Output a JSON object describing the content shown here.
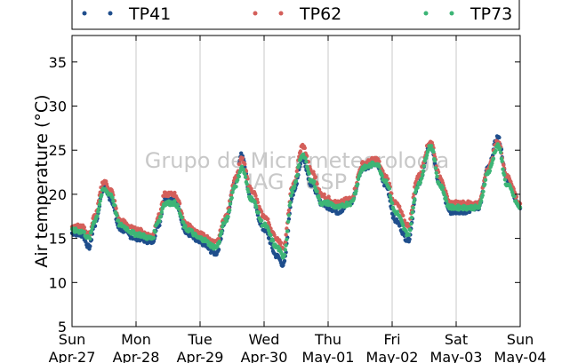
{
  "chart_data": {
    "type": "scatter",
    "ylabel": "Air temperature (°C)",
    "ylim": [
      5,
      38
    ],
    "yticks": [
      5,
      10,
      15,
      20,
      25,
      30,
      35
    ],
    "xlim_days": [
      0,
      7
    ],
    "xticks": [
      {
        "day": "Sun",
        "date": "Apr-27"
      },
      {
        "day": "Mon",
        "date": "Apr-28"
      },
      {
        "day": "Tue",
        "date": "Apr-29"
      },
      {
        "day": "Wed",
        "date": "Apr-30"
      },
      {
        "day": "Thu",
        "date": "May-01"
      },
      {
        "day": "Fri",
        "date": "May-02"
      },
      {
        "day": "Sat",
        "date": "May-03"
      },
      {
        "day": "Sun",
        "date": "May-04"
      }
    ],
    "grid": "vertical",
    "legend_position": "top",
    "watermark": [
      "Grupo de Micrometeorologia",
      "IAG / USP"
    ],
    "series": [
      {
        "name": "TP41",
        "color": "#1f4e8c",
        "points": [
          [
            0,
            15.6
          ],
          [
            0.15,
            15.4
          ],
          [
            0.27,
            14.0
          ],
          [
            0.35,
            16.5
          ],
          [
            0.5,
            20.8
          ],
          [
            0.6,
            19.5
          ],
          [
            0.75,
            16.0
          ],
          [
            1.0,
            15.0
          ],
          [
            1.25,
            14.6
          ],
          [
            1.35,
            16.5
          ],
          [
            1.45,
            19.5
          ],
          [
            1.6,
            19.5
          ],
          [
            1.8,
            15.5
          ],
          [
            2.0,
            14.5
          ],
          [
            2.25,
            13.3
          ],
          [
            2.4,
            17.0
          ],
          [
            2.55,
            21.5
          ],
          [
            2.65,
            24.5
          ],
          [
            2.8,
            19.5
          ],
          [
            3.0,
            16.0
          ],
          [
            3.2,
            13.0
          ],
          [
            3.3,
            12.0
          ],
          [
            3.45,
            20.0
          ],
          [
            3.6,
            24.0
          ],
          [
            3.75,
            21.0
          ],
          [
            3.9,
            19.0
          ],
          [
            4.0,
            18.5
          ],
          [
            4.15,
            18.0
          ],
          [
            4.35,
            19.0
          ],
          [
            4.55,
            23.0
          ],
          [
            4.75,
            23.5
          ],
          [
            4.9,
            21.0
          ],
          [
            5.05,
            17.0
          ],
          [
            5.25,
            14.8
          ],
          [
            5.4,
            21.0
          ],
          [
            5.6,
            25.5
          ],
          [
            5.75,
            21.0
          ],
          [
            5.9,
            18.0
          ],
          [
            6.1,
            18.0
          ],
          [
            6.35,
            18.5
          ],
          [
            6.5,
            23.0
          ],
          [
            6.65,
            26.5
          ],
          [
            6.8,
            21.5
          ],
          [
            7.0,
            18.5
          ]
        ]
      },
      {
        "name": "TP62",
        "color": "#d45f5a",
        "points": [
          [
            0,
            16.5
          ],
          [
            0.15,
            16.3
          ],
          [
            0.27,
            15.5
          ],
          [
            0.35,
            17.5
          ],
          [
            0.5,
            21.5
          ],
          [
            0.6,
            20.5
          ],
          [
            0.75,
            17.0
          ],
          [
            1.0,
            16.0
          ],
          [
            1.25,
            15.3
          ],
          [
            1.35,
            17.5
          ],
          [
            1.45,
            20.0
          ],
          [
            1.6,
            20.0
          ],
          [
            1.8,
            16.5
          ],
          [
            2.0,
            15.5
          ],
          [
            2.25,
            14.5
          ],
          [
            2.4,
            17.5
          ],
          [
            2.55,
            21.8
          ],
          [
            2.65,
            24.0
          ],
          [
            2.8,
            20.5
          ],
          [
            3.0,
            17.5
          ],
          [
            3.2,
            15.0
          ],
          [
            3.3,
            14.0
          ],
          [
            3.45,
            21.0
          ],
          [
            3.6,
            25.5
          ],
          [
            3.75,
            22.5
          ],
          [
            3.9,
            20.0
          ],
          [
            4.0,
            19.5
          ],
          [
            4.15,
            19.0
          ],
          [
            4.35,
            19.5
          ],
          [
            4.55,
            23.5
          ],
          [
            4.75,
            24.0
          ],
          [
            4.9,
            22.0
          ],
          [
            5.05,
            19.0
          ],
          [
            5.25,
            16.5
          ],
          [
            5.4,
            22.0
          ],
          [
            5.6,
            26.0
          ],
          [
            5.75,
            22.0
          ],
          [
            5.9,
            19.0
          ],
          [
            6.1,
            19.0
          ],
          [
            6.35,
            19.0
          ],
          [
            6.5,
            23.0
          ],
          [
            6.65,
            26.0
          ],
          [
            6.8,
            22.0
          ],
          [
            7.0,
            19.0
          ]
        ]
      },
      {
        "name": "TP73",
        "color": "#3db576",
        "points": [
          [
            0,
            15.9
          ],
          [
            0.15,
            15.8
          ],
          [
            0.27,
            15.0
          ],
          [
            0.35,
            17.0
          ],
          [
            0.5,
            20.5
          ],
          [
            0.6,
            20.0
          ],
          [
            0.75,
            16.5
          ],
          [
            1.0,
            15.5
          ],
          [
            1.25,
            15.0
          ],
          [
            1.35,
            17.0
          ],
          [
            1.45,
            19.0
          ],
          [
            1.6,
            19.0
          ],
          [
            1.8,
            16.0
          ],
          [
            2.0,
            15.0
          ],
          [
            2.25,
            14.0
          ],
          [
            2.4,
            17.0
          ],
          [
            2.55,
            21.0
          ],
          [
            2.65,
            23.0
          ],
          [
            2.8,
            19.5
          ],
          [
            3.0,
            16.5
          ],
          [
            3.2,
            14.0
          ],
          [
            3.3,
            13.0
          ],
          [
            3.45,
            20.5
          ],
          [
            3.6,
            24.5
          ],
          [
            3.75,
            21.5
          ],
          [
            3.9,
            19.0
          ],
          [
            4.0,
            19.0
          ],
          [
            4.15,
            18.5
          ],
          [
            4.35,
            19.0
          ],
          [
            4.55,
            23.0
          ],
          [
            4.75,
            23.5
          ],
          [
            4.9,
            21.5
          ],
          [
            5.05,
            18.0
          ],
          [
            5.25,
            15.5
          ],
          [
            5.4,
            21.0
          ],
          [
            5.6,
            25.5
          ],
          [
            5.75,
            21.0
          ],
          [
            5.9,
            18.5
          ],
          [
            6.1,
            18.5
          ],
          [
            6.35,
            18.5
          ],
          [
            6.5,
            22.5
          ],
          [
            6.65,
            25.5
          ],
          [
            6.8,
            21.0
          ],
          [
            7.0,
            18.5
          ]
        ]
      }
    ]
  }
}
